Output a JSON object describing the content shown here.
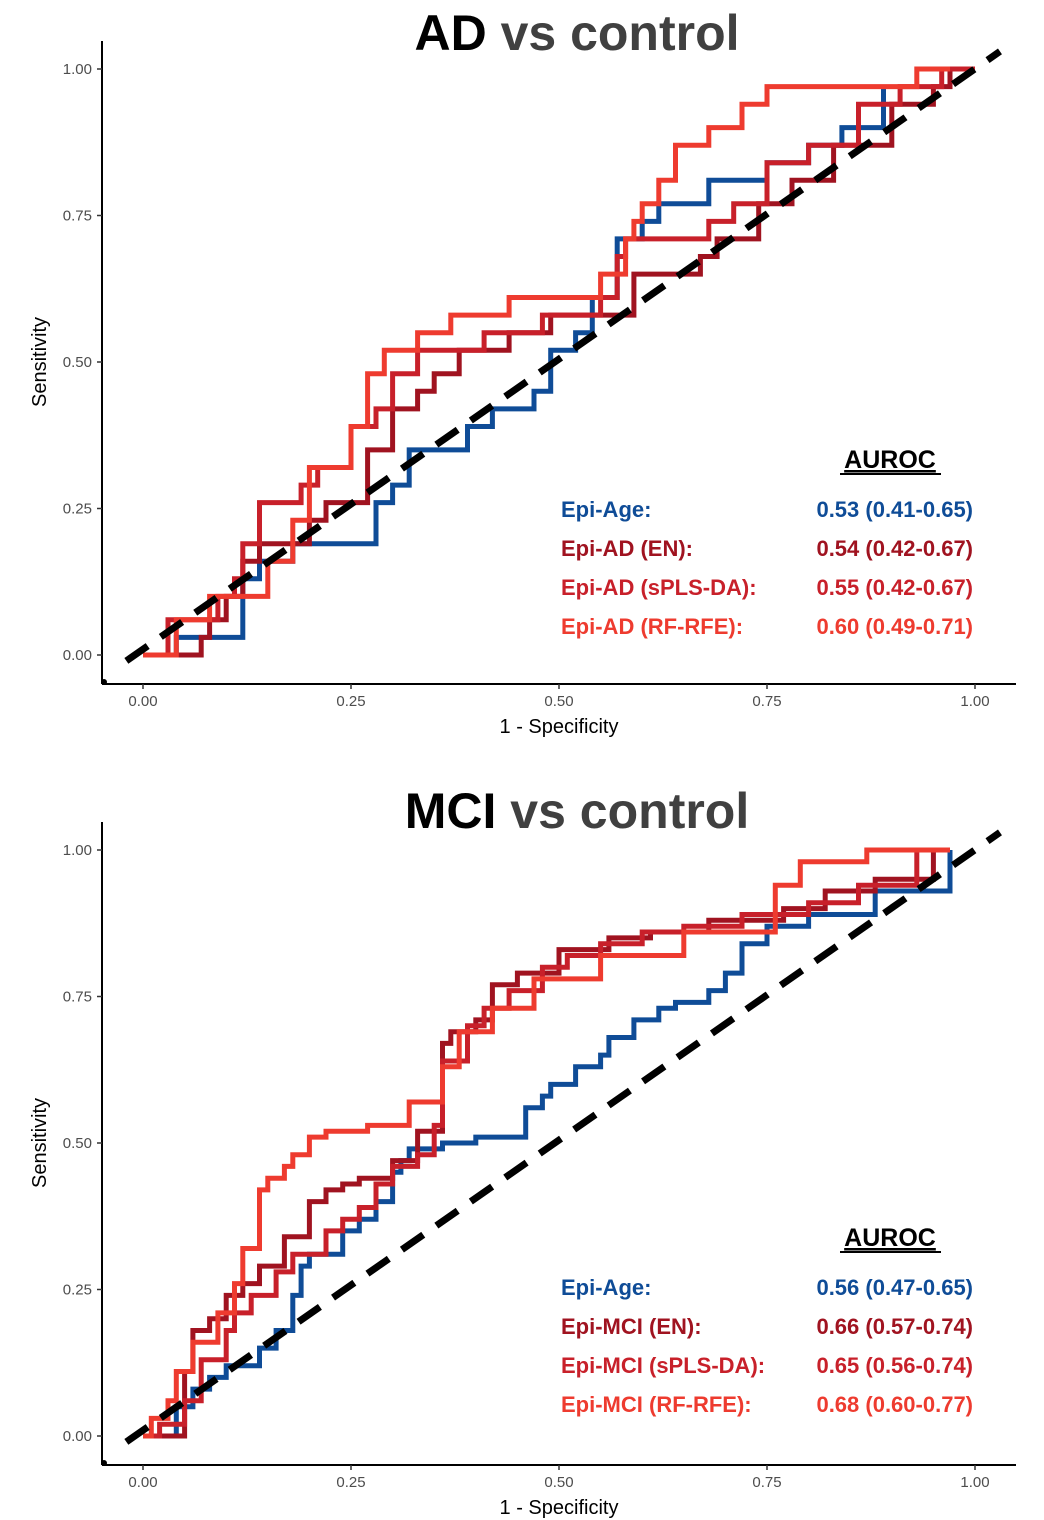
{
  "chart_data": [
    {
      "type": "line",
      "title": {
        "bold": "AD",
        "rest": " vs control"
      },
      "xlabel": "1 - Specificity",
      "ylabel": "Sensitivity",
      "xlim": [
        0,
        1
      ],
      "ylim": [
        0,
        1
      ],
      "xticks": [
        "0.00",
        "0.25",
        "0.50",
        "0.75",
        "1.00"
      ],
      "yticks": [
        "0.00",
        "0.25",
        "0.50",
        "0.75",
        "1.00"
      ],
      "grid": false,
      "legend_header": "AUROC",
      "legend_position": "bottom-right",
      "reference_line": "diagonal",
      "series": [
        {
          "name": "Epi-Age:",
          "auroc": "0.53 (0.41-0.65)",
          "color": "#0F4C97",
          "x": [
            0,
            0.04,
            0.04,
            0.12,
            0.12,
            0.14,
            0.14,
            0.18,
            0.18,
            0.2,
            0.2,
            0.28,
            0.28,
            0.3,
            0.3,
            0.32,
            0.32,
            0.39,
            0.39,
            0.42,
            0.42,
            0.47,
            0.47,
            0.49,
            0.49,
            0.52,
            0.52,
            0.54,
            0.54,
            0.57,
            0.57,
            0.6,
            0.6,
            0.62,
            0.62,
            0.68,
            0.68,
            0.75,
            0.75,
            0.8,
            0.8,
            0.84,
            0.84,
            0.89,
            0.89
          ],
          "y": [
            0,
            0,
            0.03,
            0.03,
            0.13,
            0.13,
            0.16,
            0.16,
            0.19,
            0.19,
            0.19,
            0.19,
            0.26,
            0.26,
            0.29,
            0.29,
            0.35,
            0.35,
            0.39,
            0.39,
            0.42,
            0.42,
            0.45,
            0.45,
            0.52,
            0.52,
            0.55,
            0.55,
            0.61,
            0.61,
            0.71,
            0.71,
            0.74,
            0.74,
            0.77,
            0.77,
            0.81,
            0.81,
            0.84,
            0.84,
            0.87,
            0.87,
            0.9,
            0.9,
            0.97
          ]
        },
        {
          "name": "Epi-AD (EN):",
          "auroc": "0.54 (0.42-0.67)",
          "color": "#A01320",
          "x": [
            0,
            0.07,
            0.07,
            0.08,
            0.08,
            0.1,
            0.1,
            0.12,
            0.12,
            0.14,
            0.14,
            0.2,
            0.2,
            0.22,
            0.22,
            0.27,
            0.27,
            0.3,
            0.3,
            0.33,
            0.33,
            0.35,
            0.35,
            0.38,
            0.38,
            0.44,
            0.44,
            0.49,
            0.49,
            0.55,
            0.55,
            0.59,
            0.59,
            0.67,
            0.67,
            0.69,
            0.69,
            0.74,
            0.74,
            0.78,
            0.78,
            0.83,
            0.83,
            0.9,
            0.9,
            0.95,
            0.95,
            0.97,
            0.97
          ],
          "y": [
            0,
            0,
            0.03,
            0.03,
            0.06,
            0.06,
            0.1,
            0.1,
            0.16,
            0.16,
            0.19,
            0.19,
            0.23,
            0.23,
            0.26,
            0.26,
            0.35,
            0.35,
            0.42,
            0.42,
            0.45,
            0.45,
            0.48,
            0.48,
            0.52,
            0.52,
            0.55,
            0.55,
            0.58,
            0.58,
            0.58,
            0.58,
            0.65,
            0.65,
            0.68,
            0.68,
            0.71,
            0.71,
            0.77,
            0.77,
            0.81,
            0.81,
            0.87,
            0.87,
            0.94,
            0.94,
            0.97,
            0.97,
            1.0
          ]
        },
        {
          "name": "Epi-AD (sPLS-DA):",
          "auroc": "0.55 (0.42-0.67)",
          "color": "#C8202A",
          "x": [
            0,
            0.03,
            0.03,
            0.09,
            0.09,
            0.11,
            0.11,
            0.12,
            0.12,
            0.14,
            0.14,
            0.19,
            0.19,
            0.21,
            0.21,
            0.25,
            0.25,
            0.28,
            0.28,
            0.3,
            0.3,
            0.33,
            0.33,
            0.41,
            0.41,
            0.48,
            0.48,
            0.55,
            0.55,
            0.57,
            0.57,
            0.58,
            0.58,
            0.68,
            0.68,
            0.71,
            0.71,
            0.75,
            0.75,
            0.8,
            0.8,
            0.86,
            0.86,
            0.91,
            0.91,
            0.96,
            0.96,
            1.0,
            1.0
          ],
          "y": [
            0,
            0,
            0.06,
            0.06,
            0.1,
            0.1,
            0.13,
            0.13,
            0.19,
            0.19,
            0.26,
            0.26,
            0.29,
            0.29,
            0.32,
            0.32,
            0.39,
            0.39,
            0.42,
            0.42,
            0.48,
            0.48,
            0.52,
            0.52,
            0.55,
            0.55,
            0.58,
            0.58,
            0.61,
            0.61,
            0.68,
            0.68,
            0.71,
            0.71,
            0.74,
            0.74,
            0.77,
            0.77,
            0.84,
            0.84,
            0.87,
            0.87,
            0.94,
            0.94,
            0.97,
            0.97,
            1.0,
            1.0,
            1.0
          ]
        },
        {
          "name": "Epi-AD (RF-RFE):",
          "auroc": "0.60 (0.49-0.71)",
          "color": "#EE3B2F",
          "x": [
            0,
            0.04,
            0.04,
            0.08,
            0.08,
            0.12,
            0.12,
            0.15,
            0.15,
            0.18,
            0.18,
            0.2,
            0.2,
            0.25,
            0.25,
            0.27,
            0.27,
            0.29,
            0.29,
            0.33,
            0.33,
            0.37,
            0.37,
            0.44,
            0.44,
            0.48,
            0.48,
            0.55,
            0.55,
            0.58,
            0.58,
            0.59,
            0.59,
            0.6,
            0.6,
            0.62,
            0.62,
            0.64,
            0.64,
            0.68,
            0.68,
            0.72,
            0.72,
            0.75,
            0.75,
            0.79,
            0.79,
            0.93,
            0.93,
            0.97,
            0.97
          ],
          "y": [
            0,
            0,
            0.06,
            0.06,
            0.1,
            0.1,
            0.1,
            0.1,
            0.16,
            0.16,
            0.23,
            0.23,
            0.32,
            0.32,
            0.39,
            0.39,
            0.48,
            0.48,
            0.52,
            0.52,
            0.55,
            0.55,
            0.58,
            0.58,
            0.61,
            0.61,
            0.61,
            0.61,
            0.65,
            0.65,
            0.71,
            0.71,
            0.74,
            0.74,
            0.77,
            0.77,
            0.81,
            0.81,
            0.87,
            0.87,
            0.9,
            0.9,
            0.94,
            0.94,
            0.97,
            0.97,
            0.97,
            0.97,
            1.0,
            1.0,
            1.0
          ]
        }
      ]
    },
    {
      "type": "line",
      "title": {
        "bold": "MCI",
        "rest": " vs control"
      },
      "xlabel": "1 - Specificity",
      "ylabel": "Sensitivity",
      "xlim": [
        0,
        1
      ],
      "ylim": [
        0,
        1
      ],
      "xticks": [
        "0.00",
        "0.25",
        "0.50",
        "0.75",
        "1.00"
      ],
      "yticks": [
        "0.00",
        "0.25",
        "0.50",
        "0.75",
        "1.00"
      ],
      "grid": false,
      "legend_header": "AUROC",
      "legend_position": "bottom-right",
      "reference_line": "diagonal",
      "series": [
        {
          "name": "Epi-Age:",
          "auroc": "0.56 (0.47-0.65)",
          "color": "#0F4C97",
          "x": [
            0,
            0.04,
            0.04,
            0.06,
            0.06,
            0.08,
            0.08,
            0.1,
            0.1,
            0.14,
            0.14,
            0.16,
            0.16,
            0.18,
            0.18,
            0.19,
            0.19,
            0.2,
            0.2,
            0.24,
            0.24,
            0.26,
            0.26,
            0.28,
            0.28,
            0.3,
            0.3,
            0.31,
            0.31,
            0.32,
            0.32,
            0.34,
            0.34,
            0.36,
            0.36,
            0.4,
            0.4,
            0.46,
            0.46,
            0.48,
            0.48,
            0.49,
            0.49,
            0.52,
            0.52,
            0.55,
            0.55,
            0.56,
            0.56,
            0.59,
            0.59,
            0.62,
            0.62,
            0.64,
            0.64,
            0.68,
            0.68,
            0.7,
            0.7,
            0.72,
            0.72,
            0.75,
            0.75,
            0.8,
            0.8,
            0.88,
            0.88,
            0.97,
            0.97
          ],
          "y": [
            0,
            0,
            0.05,
            0.05,
            0.08,
            0.08,
            0.1,
            0.1,
            0.12,
            0.12,
            0.15,
            0.15,
            0.18,
            0.18,
            0.24,
            0.24,
            0.29,
            0.29,
            0.31,
            0.31,
            0.35,
            0.35,
            0.37,
            0.37,
            0.4,
            0.4,
            0.45,
            0.45,
            0.47,
            0.47,
            0.49,
            0.49,
            0.49,
            0.49,
            0.5,
            0.5,
            0.51,
            0.51,
            0.56,
            0.56,
            0.58,
            0.58,
            0.6,
            0.6,
            0.63,
            0.63,
            0.65,
            0.65,
            0.68,
            0.68,
            0.71,
            0.71,
            0.73,
            0.73,
            0.74,
            0.74,
            0.76,
            0.76,
            0.79,
            0.79,
            0.84,
            0.84,
            0.87,
            0.87,
            0.89,
            0.89,
            0.93,
            0.93,
            1.0
          ]
        },
        {
          "name": "Epi-MCI (EN):",
          "auroc": "0.66 (0.57-0.74)",
          "color": "#A01320",
          "x": [
            0,
            0.05,
            0.05,
            0.06,
            0.06,
            0.08,
            0.08,
            0.1,
            0.1,
            0.12,
            0.12,
            0.14,
            0.14,
            0.17,
            0.17,
            0.2,
            0.2,
            0.22,
            0.22,
            0.24,
            0.24,
            0.26,
            0.26,
            0.3,
            0.3,
            0.33,
            0.33,
            0.36,
            0.36,
            0.37,
            0.37,
            0.4,
            0.4,
            0.42,
            0.42,
            0.45,
            0.45,
            0.5,
            0.5,
            0.56,
            0.56,
            0.61,
            0.61,
            0.68,
            0.68,
            0.77,
            0.77,
            0.82,
            0.82,
            0.88,
            0.88,
            0.95,
            0.95
          ],
          "y": [
            0,
            0,
            0.11,
            0.11,
            0.18,
            0.18,
            0.2,
            0.2,
            0.24,
            0.24,
            0.26,
            0.26,
            0.29,
            0.29,
            0.34,
            0.34,
            0.4,
            0.4,
            0.42,
            0.42,
            0.43,
            0.43,
            0.44,
            0.44,
            0.47,
            0.47,
            0.52,
            0.52,
            0.67,
            0.67,
            0.69,
            0.69,
            0.71,
            0.71,
            0.77,
            0.77,
            0.79,
            0.79,
            0.83,
            0.83,
            0.85,
            0.85,
            0.86,
            0.86,
            0.88,
            0.88,
            0.9,
            0.9,
            0.93,
            0.93,
            0.95,
            0.95,
            1.0
          ]
        },
        {
          "name": "Epi-MCI (sPLS-DA):",
          "auroc": "0.65 (0.56-0.74)",
          "color": "#C8202A",
          "x": [
            0,
            0.02,
            0.02,
            0.05,
            0.05,
            0.07,
            0.07,
            0.1,
            0.1,
            0.11,
            0.11,
            0.13,
            0.13,
            0.16,
            0.16,
            0.18,
            0.18,
            0.22,
            0.22,
            0.24,
            0.24,
            0.26,
            0.26,
            0.28,
            0.28,
            0.3,
            0.3,
            0.33,
            0.33,
            0.35,
            0.35,
            0.36,
            0.36,
            0.39,
            0.39,
            0.41,
            0.41,
            0.44,
            0.44,
            0.48,
            0.48,
            0.51,
            0.51,
            0.55,
            0.55,
            0.6,
            0.6,
            0.65,
            0.65,
            0.72,
            0.72,
            0.8,
            0.8,
            0.86,
            0.86,
            0.93,
            0.93
          ],
          "y": [
            0,
            0,
            0.02,
            0.02,
            0.06,
            0.06,
            0.13,
            0.13,
            0.18,
            0.18,
            0.21,
            0.21,
            0.24,
            0.24,
            0.28,
            0.28,
            0.31,
            0.31,
            0.35,
            0.35,
            0.37,
            0.37,
            0.39,
            0.39,
            0.43,
            0.43,
            0.46,
            0.46,
            0.48,
            0.48,
            0.53,
            0.53,
            0.64,
            0.64,
            0.7,
            0.7,
            0.73,
            0.73,
            0.76,
            0.76,
            0.8,
            0.8,
            0.82,
            0.82,
            0.84,
            0.84,
            0.86,
            0.86,
            0.87,
            0.87,
            0.89,
            0.89,
            0.91,
            0.91,
            0.94,
            0.94,
            1.0
          ]
        },
        {
          "name": "Epi-MCI (RF-RFE):",
          "auroc": "0.68 (0.60-0.77)",
          "color": "#EE3B2F",
          "x": [
            0,
            0.01,
            0.01,
            0.03,
            0.03,
            0.04,
            0.04,
            0.06,
            0.06,
            0.09,
            0.09,
            0.11,
            0.11,
            0.12,
            0.12,
            0.14,
            0.14,
            0.15,
            0.15,
            0.17,
            0.17,
            0.18,
            0.18,
            0.2,
            0.2,
            0.22,
            0.22,
            0.27,
            0.27,
            0.32,
            0.32,
            0.36,
            0.36,
            0.38,
            0.38,
            0.42,
            0.42,
            0.47,
            0.47,
            0.55,
            0.55,
            0.65,
            0.65,
            0.76,
            0.76,
            0.79,
            0.79,
            0.87,
            0.87,
            0.97,
            0.97
          ],
          "y": [
            0,
            0,
            0.03,
            0.03,
            0.06,
            0.06,
            0.11,
            0.11,
            0.16,
            0.16,
            0.21,
            0.21,
            0.26,
            0.26,
            0.32,
            0.32,
            0.42,
            0.42,
            0.44,
            0.44,
            0.46,
            0.46,
            0.48,
            0.48,
            0.51,
            0.51,
            0.52,
            0.52,
            0.53,
            0.53,
            0.57,
            0.57,
            0.63,
            0.63,
            0.69,
            0.69,
            0.73,
            0.73,
            0.78,
            0.78,
            0.82,
            0.82,
            0.86,
            0.86,
            0.94,
            0.94,
            0.98,
            0.98,
            1.0,
            1.0,
            1.0
          ]
        }
      ]
    }
  ]
}
